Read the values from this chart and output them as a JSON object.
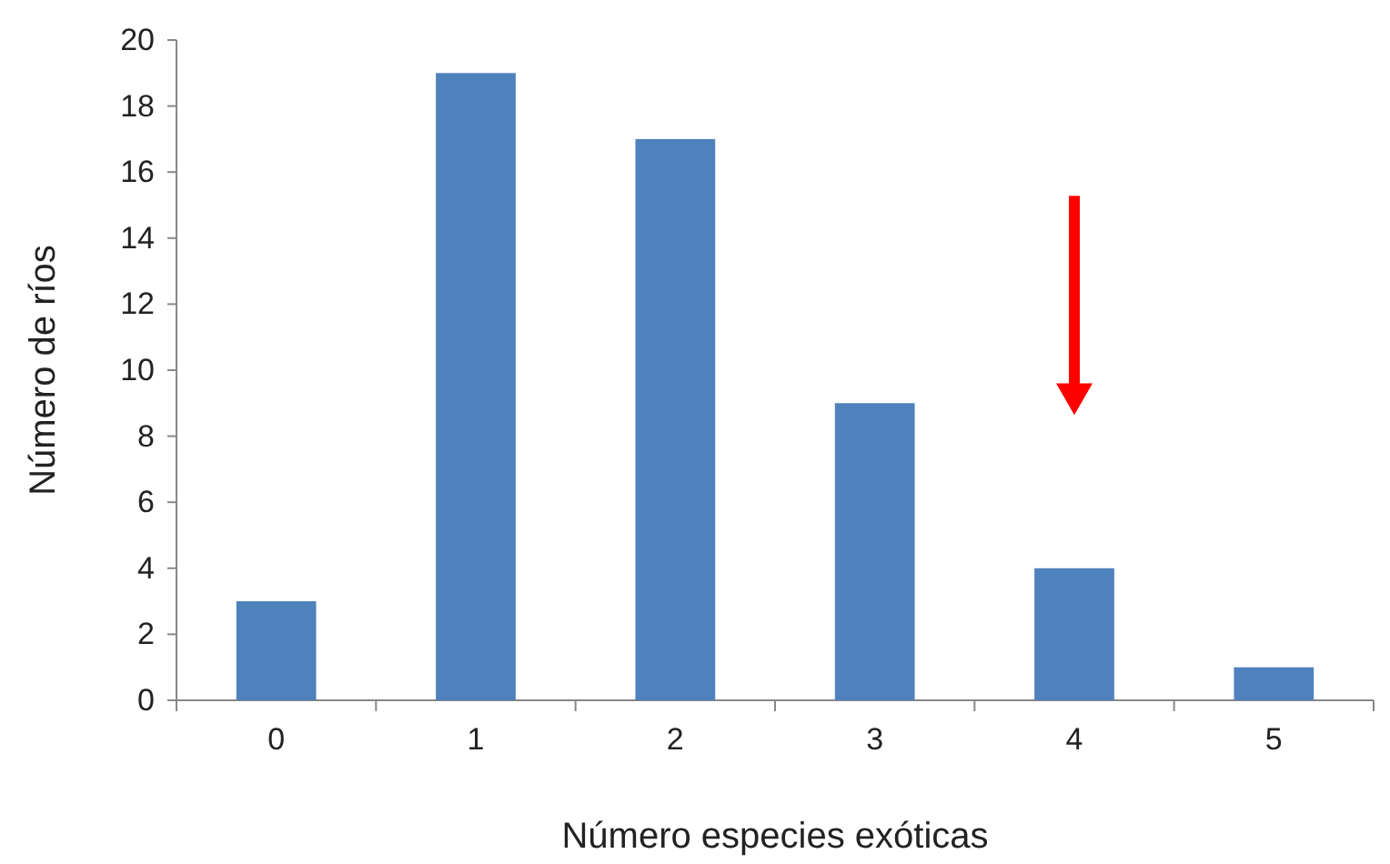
{
  "chart_data": {
    "type": "bar",
    "xlabel": "Número especies exóticas",
    "ylabel": "Número de ríos",
    "categories": [
      "0",
      "1",
      "2",
      "3",
      "4",
      "5"
    ],
    "values": [
      3,
      19,
      17,
      9,
      4,
      1
    ],
    "color": "#4f81bd",
    "ylim": [
      0,
      20
    ],
    "yticks": [
      0,
      2,
      4,
      6,
      8,
      10,
      12,
      14,
      16,
      18,
      20
    ],
    "grid": false
  }
}
